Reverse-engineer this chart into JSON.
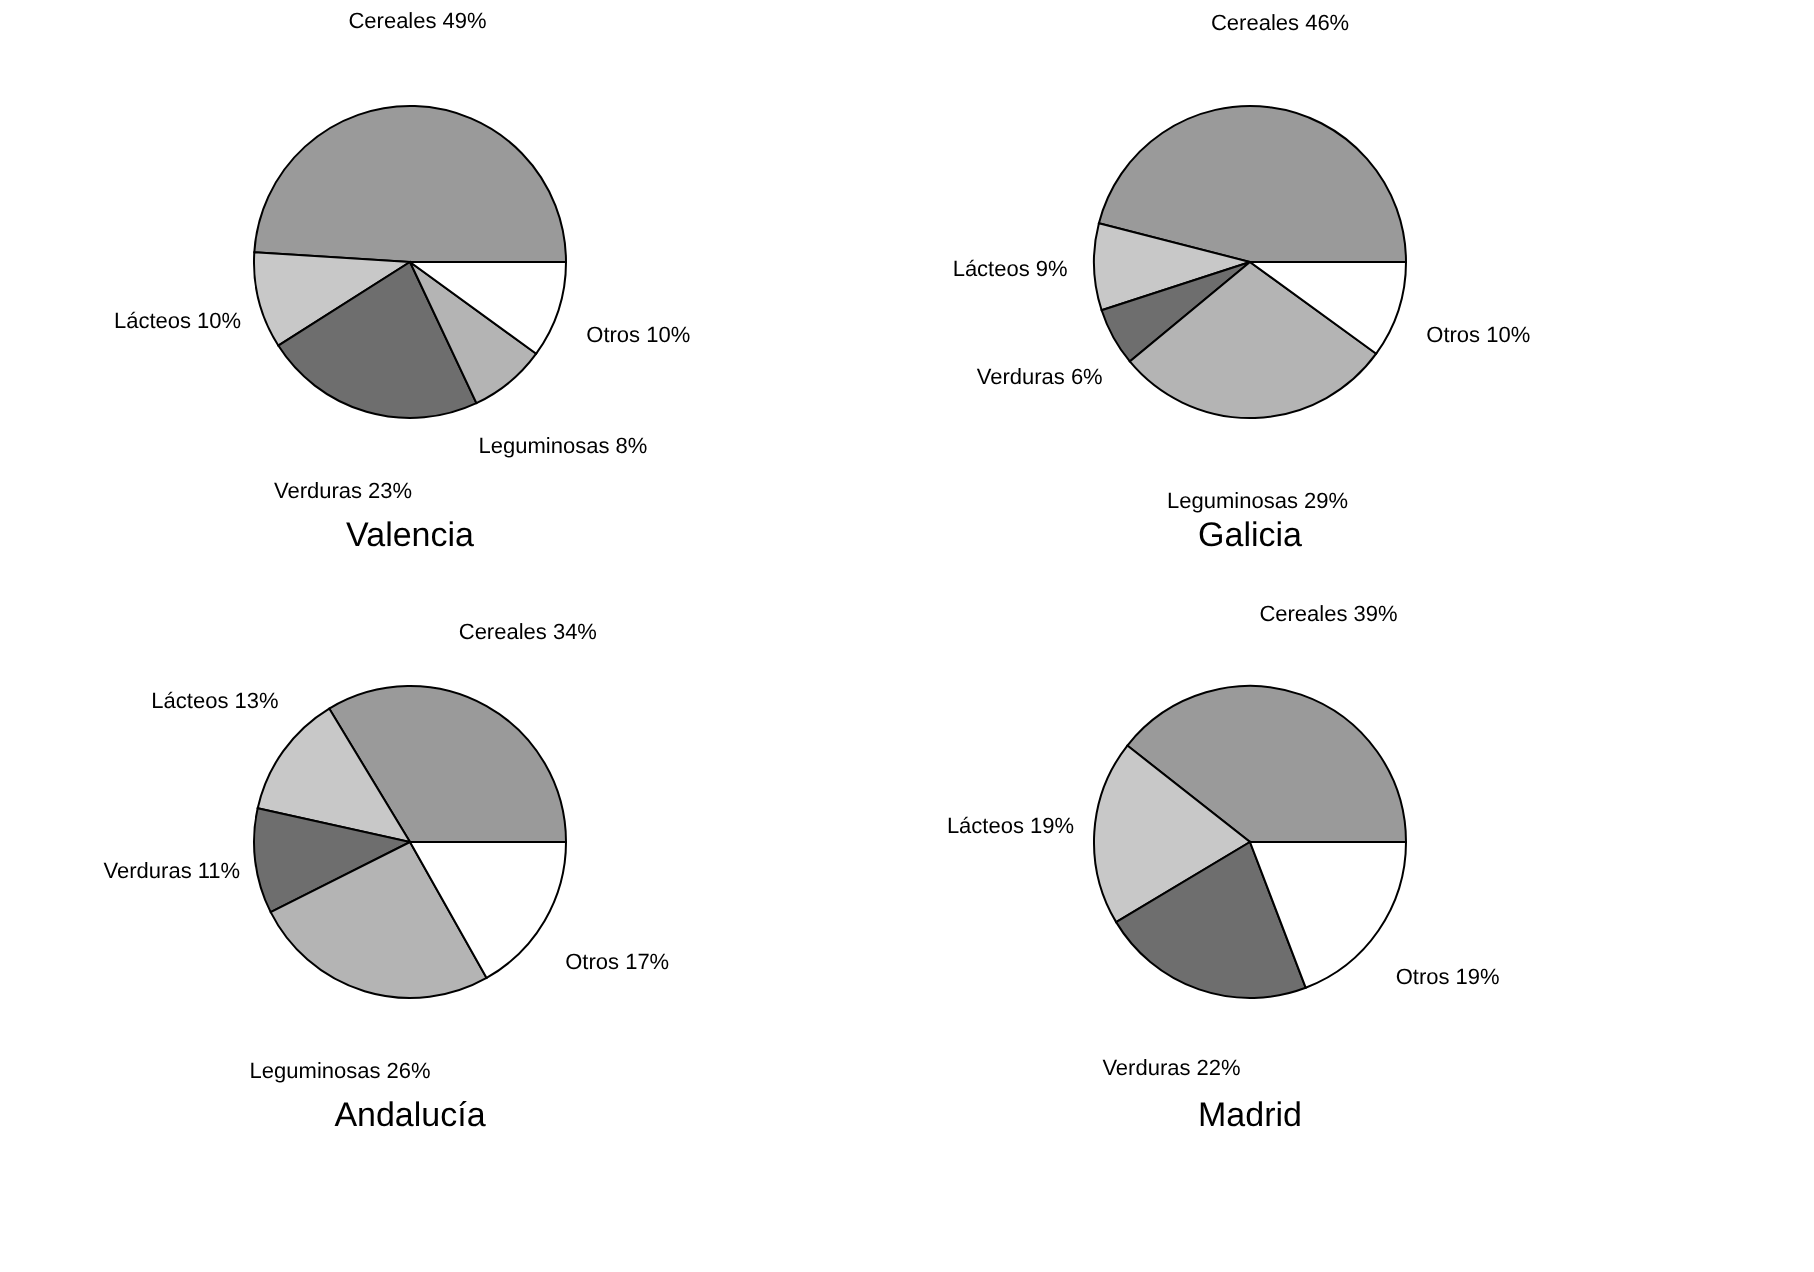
{
  "chart_data": [
    {
      "type": "pie",
      "title": "Valencia",
      "categories": [
        "Cereales",
        "Lácteos",
        "Verduras",
        "Leguminosas",
        "Otros"
      ],
      "values": [
        49,
        10,
        23,
        8,
        10
      ],
      "value_labels": [
        "49%",
        "10%",
        "23%",
        "8%",
        "10%"
      ],
      "colors": [
        "#9a9a9a",
        "#c8c8c8",
        "#6e6e6e",
        "#b4b4b4",
        "#ffffff"
      ]
    },
    {
      "type": "pie",
      "title": "Galicia",
      "categories": [
        "Cereales",
        "Lácteos",
        "Verduras",
        "Leguminosas",
        "Otros"
      ],
      "values": [
        46,
        9,
        6,
        29,
        10
      ],
      "value_labels": [
        "46%",
        "9%",
        "6%",
        "29%",
        "10%"
      ],
      "colors": [
        "#9a9a9a",
        "#c8c8c8",
        "#6e6e6e",
        "#b4b4b4",
        "#ffffff"
      ]
    },
    {
      "type": "pie",
      "title": "Andalucía",
      "categories": [
        "Cereales",
        "Lácteos",
        "Verduras",
        "Leguminosas",
        "Otros"
      ],
      "values": [
        34,
        13,
        11,
        26,
        17
      ],
      "value_labels": [
        "34%",
        "13%",
        "11%",
        "26%",
        "17%"
      ],
      "colors": [
        "#9a9a9a",
        "#c8c8c8",
        "#6e6e6e",
        "#b4b4b4",
        "#ffffff"
      ]
    },
    {
      "type": "pie",
      "title": "Madrid",
      "categories": [
        "Cereales",
        "Lácteos",
        "Verduras",
        "Otros"
      ],
      "values": [
        39,
        19,
        22,
        19
      ],
      "value_labels": [
        "39%",
        "19%",
        "22%",
        "19%"
      ],
      "colors": [
        "#9a9a9a",
        "#c8c8c8",
        "#6e6e6e",
        "#ffffff"
      ]
    }
  ]
}
